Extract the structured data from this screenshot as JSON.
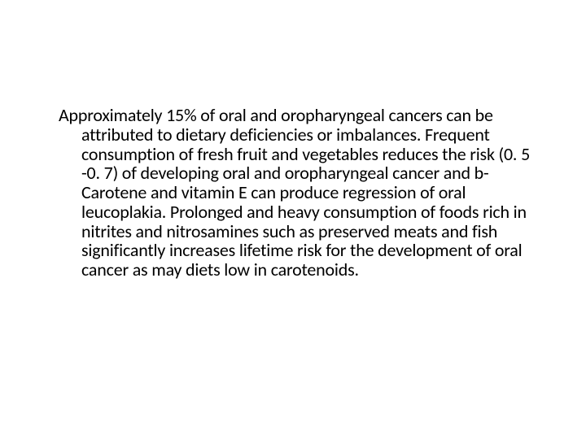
{
  "slide": {
    "body_text": "Approximately 15% of oral and oropharyngeal cancers can be attributed to dietary deficiencies or imbalances.  Frequent consumption of fresh fruit and vegetables reduces the risk (0. 5 -0. 7) of developing oral and oropharyngeal cancer  and b-Carotene and vitamin E can produce regression of oral leucoplakia. Prolonged and heavy consumption of foods rich in nitrites and nitrosamines such as preserved meats and fish significantly increases lifetime risk for the development of oral cancer as may diets low in carotenoids.",
    "background_color": "#ffffff",
    "text_color": "#000000",
    "font_size": 22,
    "font_family": "Calibri, Arial, sans-serif"
  }
}
